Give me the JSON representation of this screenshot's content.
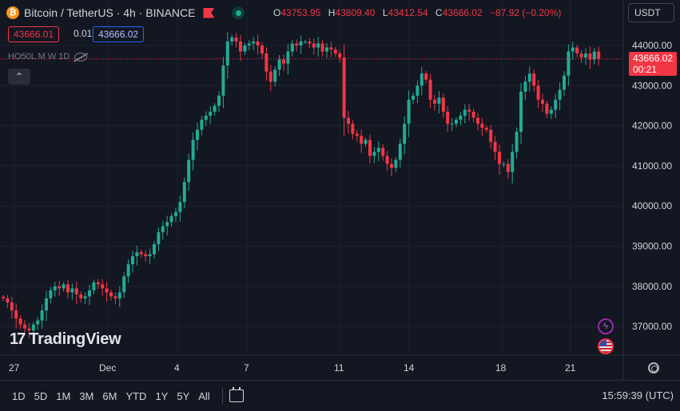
{
  "header": {
    "coin_glyph": "₿",
    "symbol": "Bitcoin / TetherUS · 4h · BINANCE",
    "ohlc": {
      "o_label": "O",
      "o": "43753.95",
      "h_label": "H",
      "h": "43809.40",
      "l_label": "L",
      "l": "43412.54",
      "c_label": "C",
      "c": "43666.02",
      "change": "−87.92 (−0.20%)"
    },
    "bid": "43666.01",
    "spread": "0.01",
    "ask": "43666.02",
    "indicator": "HO50L M W 1D",
    "collapse_glyph": "⌃"
  },
  "currency": "USDT",
  "last_price": {
    "value": "43666.02",
    "countdown": "00:21"
  },
  "logo_mark": "17",
  "logo_text": "TradingView",
  "flash_glyph": "ϟ",
  "time_labels": [
    "27",
    "Dec",
    "4",
    "7",
    "11",
    "14",
    "18",
    "21"
  ],
  "timeframes": [
    "1D",
    "5D",
    "1M",
    "3M",
    "6M",
    "YTD",
    "1Y",
    "5Y",
    "All"
  ],
  "clock": "15:59:39 (UTC)",
  "colors": {
    "up": "#22ab94",
    "down": "#f23645",
    "background": "#131722",
    "grid": "#1e222d"
  },
  "chart_data": {
    "type": "candlestick",
    "y_ticks": [
      "44000.00",
      "43000.00",
      "42000.00",
      "41000.00",
      "40000.00",
      "39000.00",
      "38000.00",
      "37000.00"
    ],
    "last_price": 43666.02,
    "closes": [
      37700,
      37600,
      37400,
      37200,
      37050,
      36950,
      36900,
      37050,
      37150,
      37400,
      37700,
      37900,
      38000,
      37950,
      38050,
      37850,
      37950,
      37800,
      37700,
      37750,
      37900,
      38100,
      38050,
      37950,
      37850,
      37750,
      37700,
      37850,
      38250,
      38550,
      38750,
      38850,
      38800,
      38750,
      38800,
      39050,
      39350,
      39500,
      39600,
      39750,
      39850,
      40100,
      40600,
      41150,
      41650,
      41900,
      42150,
      42250,
      42350,
      42500,
      42750,
      43500,
      44100,
      44200,
      44100,
      43850,
      44000,
      44050,
      44100,
      44000,
      43800,
      43350,
      43100,
      43400,
      43650,
      43550,
      43850,
      44050,
      44000,
      44100,
      44100,
      44050,
      43950,
      44050,
      43850,
      43950,
      43900,
      43800,
      43700,
      42200,
      42050,
      41800,
      41750,
      41550,
      41650,
      41250,
      41350,
      41450,
      41250,
      41050,
      40950,
      41150,
      41550,
      42050,
      42650,
      42750,
      43000,
      43300,
      43150,
      42650,
      42550,
      42700,
      42350,
      42050,
      42050,
      42150,
      42250,
      42400,
      42350,
      42200,
      42050,
      41950,
      41900,
      41600,
      41350,
      41050,
      41050,
      40850,
      41350,
      41850,
      42850,
      43100,
      43300,
      43000,
      42650,
      42550,
      42300,
      42400,
      42650,
      42900,
      43250,
      43850,
      43950,
      43800,
      43700,
      43800,
      43650,
      43850,
      43666
    ]
  }
}
